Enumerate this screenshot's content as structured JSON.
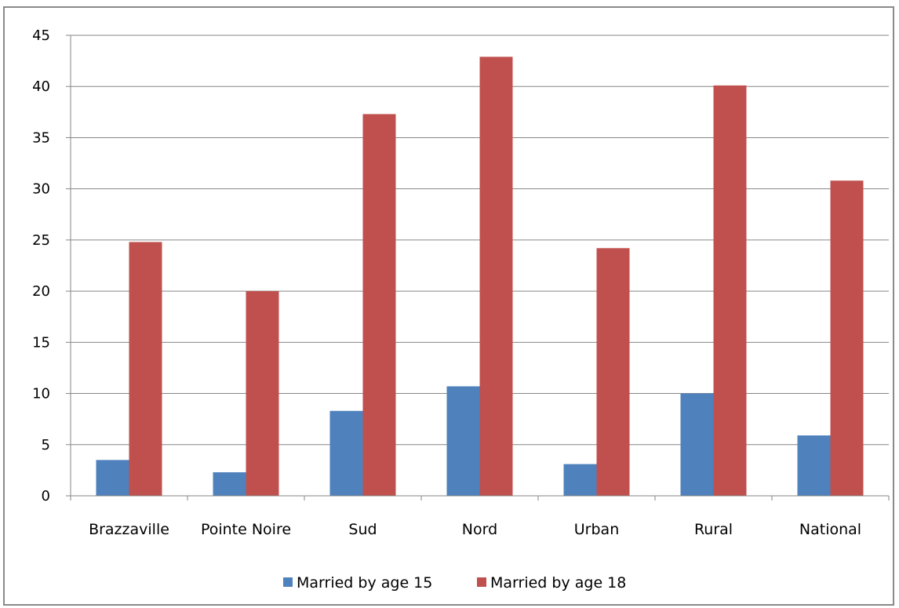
{
  "chart_data": {
    "type": "bar",
    "title": "",
    "xlabel": "",
    "ylabel": "",
    "categories": [
      "Brazzaville",
      "Pointe Noire",
      "Sud",
      "Nord",
      "Urban",
      "Rural",
      "National"
    ],
    "series": [
      {
        "name": "Married by age 15",
        "color": "#4f81bd",
        "values": [
          3.5,
          2.3,
          8.3,
          10.7,
          3.1,
          10.0,
          5.9
        ]
      },
      {
        "name": "Married by age 18",
        "color": "#c0504d",
        "values": [
          24.8,
          20.0,
          37.3,
          42.9,
          24.2,
          40.1,
          30.8
        ]
      }
    ],
    "yticks": [
      "0",
      "5",
      "10",
      "15",
      "20",
      "25",
      "30",
      "35",
      "40",
      "45"
    ],
    "ylim": [
      0,
      45
    ],
    "grid": true,
    "legend_position": "bottom",
    "axis_color": "#868686",
    "grid_color": "#868686"
  }
}
